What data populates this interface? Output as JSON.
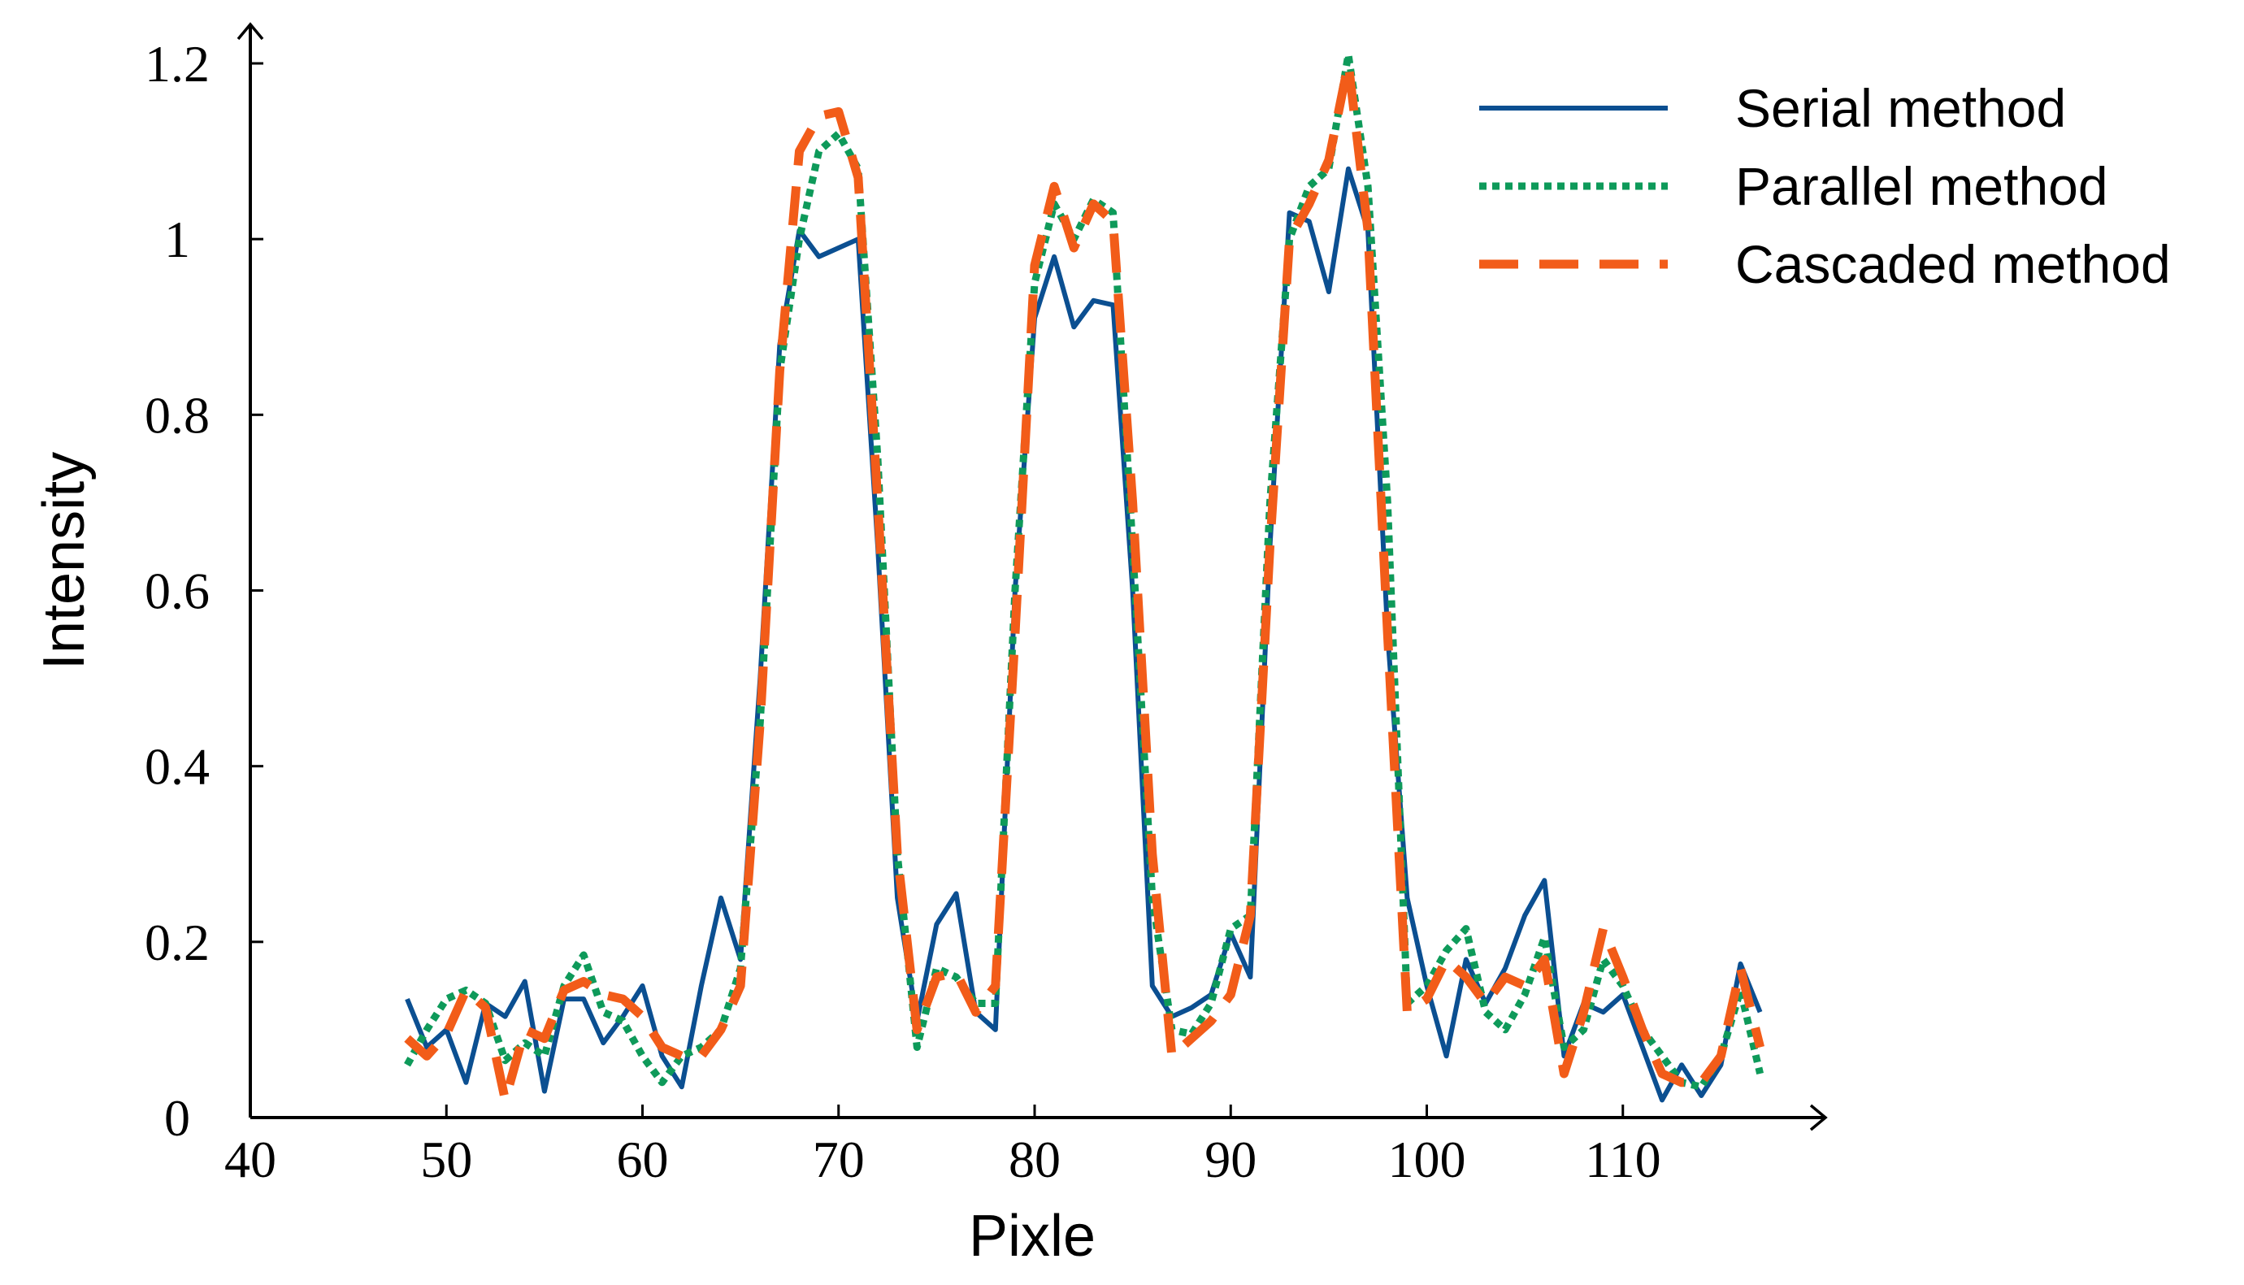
{
  "chart_data": {
    "type": "line",
    "title": "",
    "xlabel": "Pixle",
    "ylabel": "Intensity",
    "xlim": [
      40,
      120
    ],
    "ylim": [
      0,
      1.2
    ],
    "xticks": [
      40,
      50,
      60,
      70,
      80,
      90,
      100,
      110
    ],
    "yticks": [
      0,
      0.2,
      0.4,
      0.6,
      0.8,
      1,
      1.2
    ],
    "xtick_labels": [
      "40",
      "50",
      "60",
      "70",
      "80",
      "90",
      "100",
      "110"
    ],
    "ytick_labels": [
      "0",
      "0.2",
      "0.4",
      "0.6",
      "0.8",
      "1",
      "1.2"
    ],
    "grid": false,
    "legend_position": "top-right",
    "x": [
      48,
      49,
      50,
      51,
      52,
      53,
      54,
      55,
      56,
      57,
      58,
      59,
      60,
      61,
      62,
      63,
      64,
      65,
      66,
      67,
      68,
      69,
      70,
      71,
      72,
      73,
      74,
      75,
      76,
      77,
      78,
      79,
      80,
      81,
      82,
      83,
      84,
      85,
      86,
      87,
      88,
      89,
      90,
      91,
      92,
      93,
      94,
      95,
      96,
      97,
      98,
      99,
      100,
      101,
      102,
      103,
      104,
      105,
      106,
      107,
      108,
      109,
      110,
      111,
      112,
      113,
      114,
      115,
      116,
      117
    ],
    "series": [
      {
        "name": "Serial method",
        "color": "#0B4F91",
        "style": "solid",
        "values": [
          0.135,
          0.08,
          0.1,
          0.04,
          0.13,
          0.115,
          0.155,
          0.03,
          0.135,
          0.135,
          0.085,
          0.115,
          0.15,
          0.07,
          0.035,
          0.15,
          0.25,
          0.18,
          0.5,
          0.88,
          1.01,
          0.98,
          0.99,
          1.0,
          0.65,
          0.25,
          0.11,
          0.22,
          0.255,
          0.12,
          0.1,
          0.6,
          0.91,
          0.98,
          0.9,
          0.93,
          0.925,
          0.6,
          0.15,
          0.115,
          0.125,
          0.14,
          0.21,
          0.16,
          0.65,
          1.03,
          1.02,
          0.94,
          1.08,
          1.01,
          0.55,
          0.25,
          0.15,
          0.07,
          0.18,
          0.13,
          0.17,
          0.23,
          0.27,
          0.07,
          0.13,
          0.12,
          0.14,
          0.08,
          0.02,
          0.06,
          0.025,
          0.06,
          0.175,
          0.12
        ]
      },
      {
        "name": "Parallel method",
        "color": "#0E9A5A",
        "style": "dotted",
        "values": [
          0.06,
          0.1,
          0.135,
          0.145,
          0.13,
          0.065,
          0.085,
          0.07,
          0.15,
          0.185,
          0.12,
          0.11,
          0.07,
          0.04,
          0.07,
          0.08,
          0.1,
          0.17,
          0.45,
          0.85,
          1.0,
          1.1,
          1.12,
          1.08,
          0.75,
          0.3,
          0.08,
          0.17,
          0.16,
          0.13,
          0.13,
          0.6,
          0.95,
          1.04,
          1.0,
          1.045,
          1.03,
          0.65,
          0.25,
          0.1,
          0.095,
          0.13,
          0.215,
          0.23,
          0.7,
          1.0,
          1.06,
          1.08,
          1.21,
          1.06,
          0.7,
          0.13,
          0.15,
          0.19,
          0.215,
          0.12,
          0.1,
          0.14,
          0.205,
          0.08,
          0.1,
          0.18,
          0.15,
          0.1,
          0.07,
          0.04,
          0.035,
          0.07,
          0.145,
          0.05
        ]
      },
      {
        "name": "Cascaded method",
        "color": "#F25C19",
        "style": "dashed",
        "values": [
          0.09,
          0.07,
          0.095,
          0.145,
          0.125,
          0.02,
          0.1,
          0.09,
          0.145,
          0.155,
          0.14,
          0.135,
          0.115,
          0.08,
          0.07,
          0.07,
          0.1,
          0.15,
          0.45,
          0.85,
          1.1,
          1.14,
          1.145,
          1.07,
          0.7,
          0.3,
          0.1,
          0.16,
          0.165,
          0.12,
          0.15,
          0.55,
          0.97,
          1.06,
          0.99,
          1.04,
          1.02,
          0.7,
          0.3,
          0.07,
          0.09,
          0.11,
          0.14,
          0.23,
          0.65,
          1.0,
          1.04,
          1.09,
          1.2,
          1.01,
          0.55,
          0.12,
          0.135,
          0.18,
          0.16,
          0.13,
          0.16,
          0.15,
          0.18,
          0.05,
          0.12,
          0.215,
          0.16,
          0.1,
          0.05,
          0.04,
          0.04,
          0.07,
          0.17,
          0.08
        ]
      }
    ]
  }
}
